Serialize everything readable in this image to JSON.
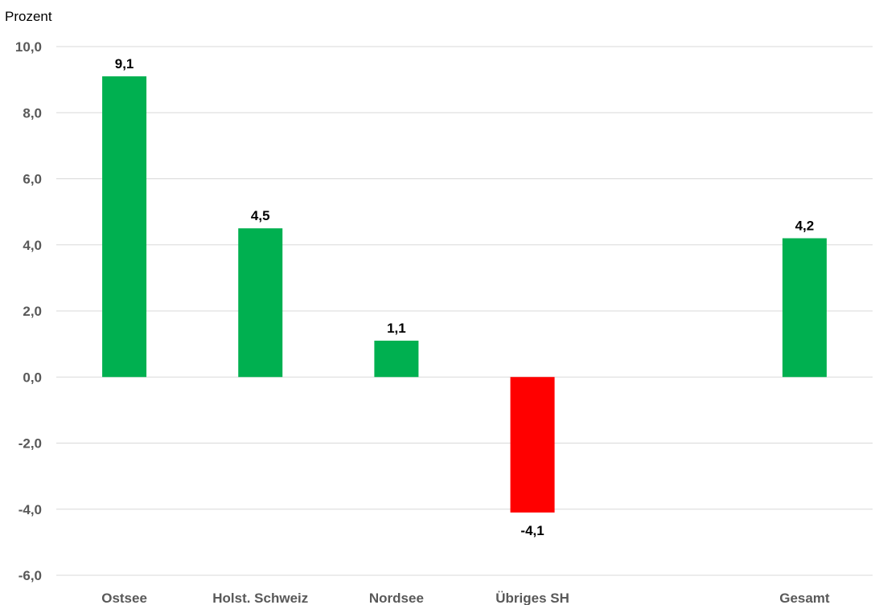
{
  "chart_data": {
    "type": "bar",
    "ylabel": "Prozent",
    "categories": [
      "Ostsee",
      "Holst. Schweiz",
      "Nordsee",
      "Übriges SH",
      "",
      "Gesamt"
    ],
    "values": [
      9.1,
      4.5,
      1.1,
      -4.1,
      null,
      4.2
    ],
    "value_labels": [
      "9,1",
      "4,5",
      "1,1",
      "-4,1",
      "",
      "4,2"
    ],
    "ylim": [
      -6,
      10
    ],
    "yticks": [
      10,
      8,
      6,
      4,
      2,
      0,
      -2,
      -4,
      -6
    ],
    "ytick_labels": [
      "10,0",
      "8,0",
      "6,0",
      "4,0",
      "2,0",
      "0,0",
      "-2,0",
      "-4,0",
      "-6,0"
    ],
    "grid": true,
    "legend": "none",
    "colors": {
      "positive": "#00b050",
      "negative": "#ff0000",
      "grid": "#d9d9d9",
      "axis_text": "#595959"
    }
  }
}
